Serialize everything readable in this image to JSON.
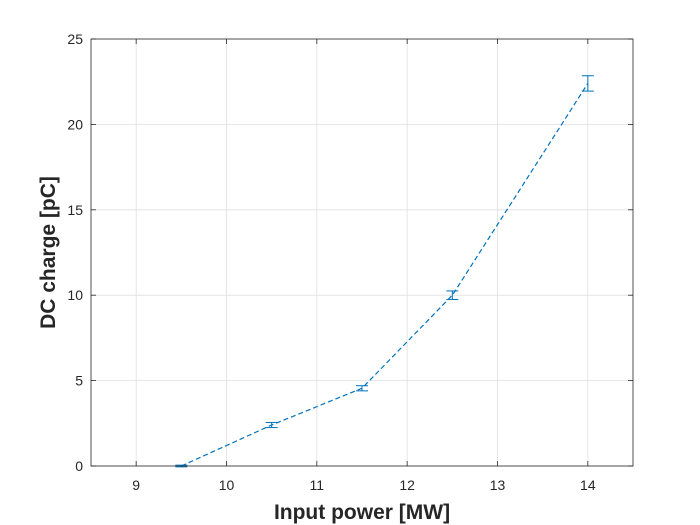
{
  "chart_data": {
    "type": "line",
    "xlabel": "Input power [MW]",
    "ylabel": "DC charge [pC]",
    "xlim": [
      8.5,
      14.5
    ],
    "ylim": [
      0,
      25
    ],
    "xticks": [
      "9",
      "10",
      "11",
      "12",
      "13",
      "14"
    ],
    "yticks": [
      "0",
      "5",
      "10",
      "15",
      "20",
      "25"
    ],
    "grid": true,
    "line_style": "dashed",
    "series": [
      {
        "x": [
          9.5,
          10.5,
          11.5,
          12.5,
          14.0
        ],
        "y": [
          0.0,
          2.4,
          4.55,
          10.0,
          22.4
        ],
        "err": [
          0.05,
          0.15,
          0.15,
          0.25,
          0.45
        ],
        "color": "#0072BD"
      }
    ]
  }
}
